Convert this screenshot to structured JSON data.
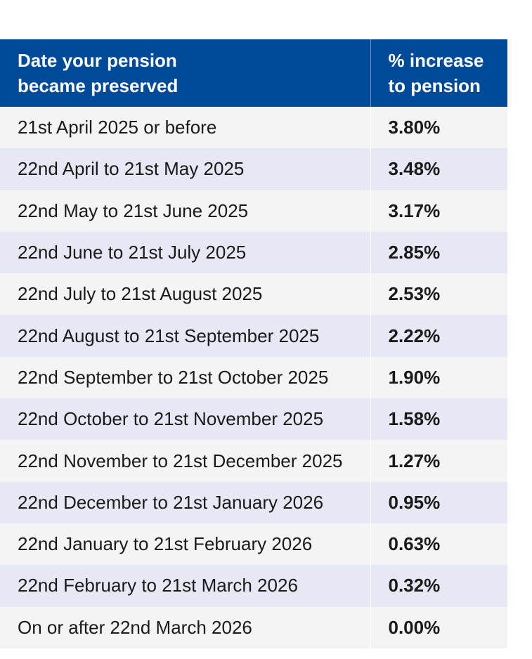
{
  "table": {
    "headers": {
      "date": [
        "Date your pension",
        "became preserved"
      ],
      "increase": [
        "% increase",
        "to pension"
      ]
    },
    "rows": [
      {
        "date": "21st April 2025 or before",
        "increase": "3.80%"
      },
      {
        "date": "22nd April to 21st May 2025",
        "increase": "3.48%"
      },
      {
        "date": "22nd May to 21st June 2025",
        "increase": "3.17%"
      },
      {
        "date": "22nd June to 21st July 2025",
        "increase": "2.85%"
      },
      {
        "date": "22nd July to 21st August 2025",
        "increase": "2.53%"
      },
      {
        "date": "22nd August to 21st September 2025",
        "increase": "2.22%"
      },
      {
        "date": "22nd September to 21st October 2025",
        "increase": "1.90%"
      },
      {
        "date": "22nd October to 21st November 2025",
        "increase": "1.58%"
      },
      {
        "date": "22nd November to 21st December 2025",
        "increase": "1.27%"
      },
      {
        "date": "22nd December to 21st January 2026",
        "increase": "0.95%"
      },
      {
        "date": "22nd January to 21st February 2026",
        "increase": "0.63%"
      },
      {
        "date": "22nd February to 21st March 2026",
        "increase": "0.32%"
      },
      {
        "date": "On or after 22nd March 2026",
        "increase": "0.00%"
      }
    ]
  },
  "colors": {
    "header_background": "#004a9a",
    "header_text": "#ffffff",
    "row_odd": "#f4f4f4",
    "row_even": "#e6e8f6"
  }
}
